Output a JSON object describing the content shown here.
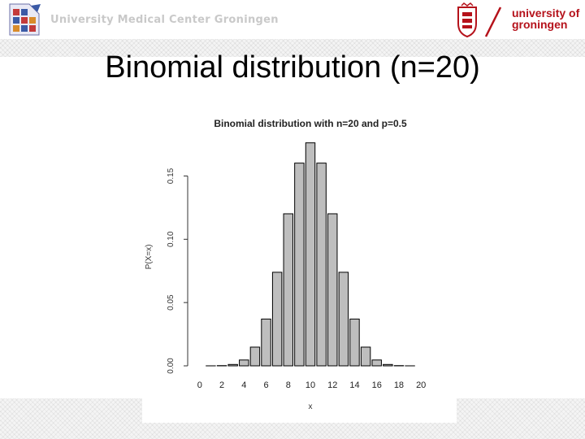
{
  "header": {
    "left_org": "University Medical Center Groningen",
    "right_org_line1": "university of",
    "right_org_line2": "groningen"
  },
  "slide": {
    "title": "Binomial distribution (n=20)"
  },
  "colors": {
    "bar_fill": "#bebebe",
    "bar_stroke": "#000000",
    "brand_red": "#b5121b"
  },
  "chart_data": {
    "type": "bar",
    "title": "Binomial distribution with n=20 and p=0.5",
    "xlabel": "x",
    "ylabel": "P(X=x)",
    "categories": [
      0,
      1,
      2,
      3,
      4,
      5,
      6,
      7,
      8,
      9,
      10,
      11,
      12,
      13,
      14,
      15,
      16,
      17,
      18,
      19,
      20
    ],
    "values": [
      1e-06,
      1.9e-05,
      0.000181,
      0.001087,
      0.004621,
      0.014786,
      0.036964,
      0.073929,
      0.120134,
      0.160179,
      0.176197,
      0.160179,
      0.120134,
      0.073929,
      0.036964,
      0.014786,
      0.004621,
      0.001087,
      0.000181,
      1.9e-05,
      1e-06
    ],
    "x_ticks": [
      "0",
      "2",
      "4",
      "6",
      "8",
      "10",
      "12",
      "14",
      "16",
      "18",
      "20"
    ],
    "y_ticks": [
      "0.00",
      "0.05",
      "0.10",
      "0.15"
    ],
    "ylim": [
      0,
      0.176
    ],
    "grid": false
  }
}
